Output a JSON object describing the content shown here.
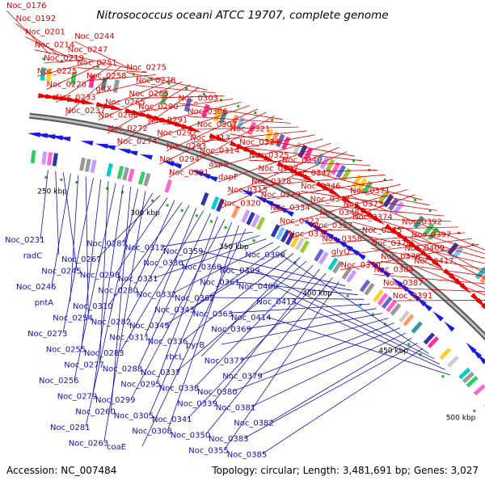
{
  "title": "Nitrosococcus oceani ATCC 19707, complete genome",
  "accession_text": "Accession: NC_007484",
  "topology_text": "Topology: circular; Length: 3,481,691 bp; Genes: 3,027",
  "colors": {
    "forward_gene": "#e80000",
    "reverse_gene": "#1a1ae0",
    "forward_label": "#dd0000",
    "reverse_label": "#1010aa",
    "backbone": "#8a8a8a"
  },
  "kbp_ticks": [
    "250 kbp",
    "300 kbp",
    "350 kbp",
    "400 kbp",
    "450 kbp",
    "500 kbp"
  ],
  "forward_genes": [
    "Noc_0176",
    "Noc_0192",
    "Noc_0201",
    "Noc_0214",
    "Noc_0219",
    "Noc_0225",
    "Noc_0228",
    "Noc_0233",
    "Noc_0237",
    "Noc_0244",
    "Noc_0247",
    "Noc_0251",
    "Noc_0258",
    "gltX",
    "Noc_0265",
    "Noc_0266",
    "Noc_0272",
    "Noc_0274",
    "Noc_0275",
    "Noc_0278",
    "Noc_0285",
    "Noc_0290",
    "Noc_0291",
    "Noc_0292",
    "Noc_0293",
    "Noc_0294",
    "Noc_0301",
    "Noc_0303",
    "Noc_0306",
    "Noc_0307",
    "Noc_0313",
    "Noc_0314",
    "aspS",
    "dapF",
    "Noc_0315",
    "Noc_0320",
    "Noc_0321",
    "Noc_0324",
    "Noc_0325",
    "Noc_0327",
    "Noc_0328",
    "Noc_0329",
    "Noc_0334",
    "Noc_0322",
    "Noc_0335",
    "Noc_0340",
    "Noc_0342",
    "Noc_0346",
    "Noc_0347",
    "Noc_0348",
    "Noc_0357",
    "Noc_0358",
    "glyQ",
    "Noc_0370",
    "Noc_0371",
    "Noc_0373",
    "Noc_0374",
    "Noc_0375",
    "Noc_0376",
    "Noc_0378",
    "Noc_0384",
    "Noc_0387",
    "Noc_0391",
    "Noc_0392",
    "Noc_0397",
    "Noc_0409",
    "Noc_0417"
  ],
  "reverse_genes": [
    "Noc_0231",
    "radC",
    "Noc_0245",
    "Noc_0246",
    "pntA",
    "Noc_0254",
    "Noc_0273",
    "Noc_0255",
    "Noc_0277",
    "Noc_0256",
    "Noc_0279",
    "Noc_0260",
    "Noc_0281",
    "Noc_0263",
    "Noc_0287",
    "Noc_0267",
    "Noc_0298",
    "Noc_0280",
    "Noc_0310",
    "Noc_0282",
    "Noc_0311",
    "Noc_0283",
    "Noc_0288",
    "Noc_0295",
    "Noc_0299",
    "Noc_0305",
    "Noc_0308",
    "coaE",
    "Noc_0312",
    "Noc_0330",
    "Noc_0331",
    "Noc_0332",
    "Noc_0343",
    "Noc_0349",
    "Noc_0336",
    "rbcL",
    "Noc_0337",
    "Noc_0338",
    "Noc_0339",
    "Noc_0341",
    "Noc_0350",
    "Noc_0355",
    "Noc_0359",
    "Noc_0360",
    "Noc_0361",
    "Noc_0362",
    "Noc_0363",
    "Noc_0369",
    "pyrB",
    "Noc_0377",
    "Noc_0379",
    "Noc_0380",
    "Noc_0381",
    "Noc_0382",
    "Noc_0383",
    "Noc_0385",
    "Noc_0390",
    "Noc_0399",
    "Noc_0400",
    "Noc_0413",
    "Noc_0414"
  ]
}
